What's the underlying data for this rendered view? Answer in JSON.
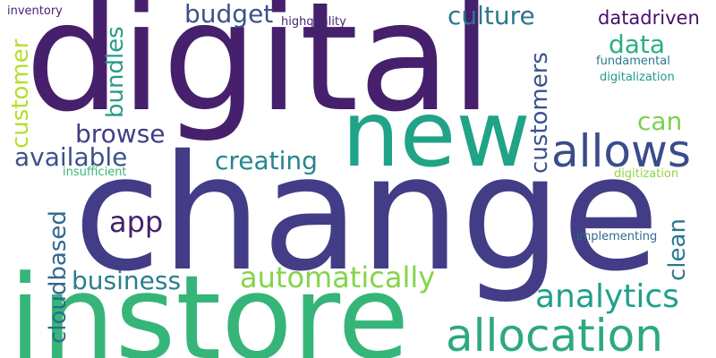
{
  "words": [
    {
      "text": "digital",
      "color": "#46206c"
    },
    {
      "text": "change",
      "color": "#433d87"
    },
    {
      "text": "instore",
      "color": "#36b579"
    },
    {
      "text": "new",
      "color": "#20a386"
    },
    {
      "text": "allows",
      "color": "#3a4c8a"
    },
    {
      "text": "allocation",
      "color": "#2da97e"
    },
    {
      "text": "analytics",
      "color": "#1fa08a"
    },
    {
      "text": "automatically",
      "color": "#84d44b"
    },
    {
      "text": "business",
      "color": "#2b7e8e"
    },
    {
      "text": "creating",
      "color": "#25858e"
    },
    {
      "text": "app",
      "color": "#46206c"
    },
    {
      "text": "browse",
      "color": "#433d87"
    },
    {
      "text": "available",
      "color": "#3b528b"
    },
    {
      "text": "culture",
      "color": "#2a788e"
    },
    {
      "text": "budget",
      "color": "#3b528b"
    },
    {
      "text": "data",
      "color": "#29af7f"
    },
    {
      "text": "can",
      "color": "#7ad151"
    },
    {
      "text": "datadriven",
      "color": "#46106c"
    },
    {
      "text": "customer",
      "color": "#b5de2b"
    },
    {
      "text": "bundles",
      "color": "#2a9a8a"
    },
    {
      "text": "customers",
      "color": "#3b528b"
    },
    {
      "text": "cloudbased",
      "color": "#31688e"
    },
    {
      "text": "clean",
      "color": "#2a788e"
    },
    {
      "text": "inventory",
      "color": "#482475"
    },
    {
      "text": "highquality",
      "color": "#482475"
    },
    {
      "text": "fundamental",
      "color": "#2a788e"
    },
    {
      "text": "digitalization",
      "color": "#1f9a8a"
    },
    {
      "text": "insufficient",
      "color": "#35b779"
    },
    {
      "text": "digitization",
      "color": "#8fd744"
    },
    {
      "text": "implementing",
      "color": "#31688e"
    }
  ]
}
